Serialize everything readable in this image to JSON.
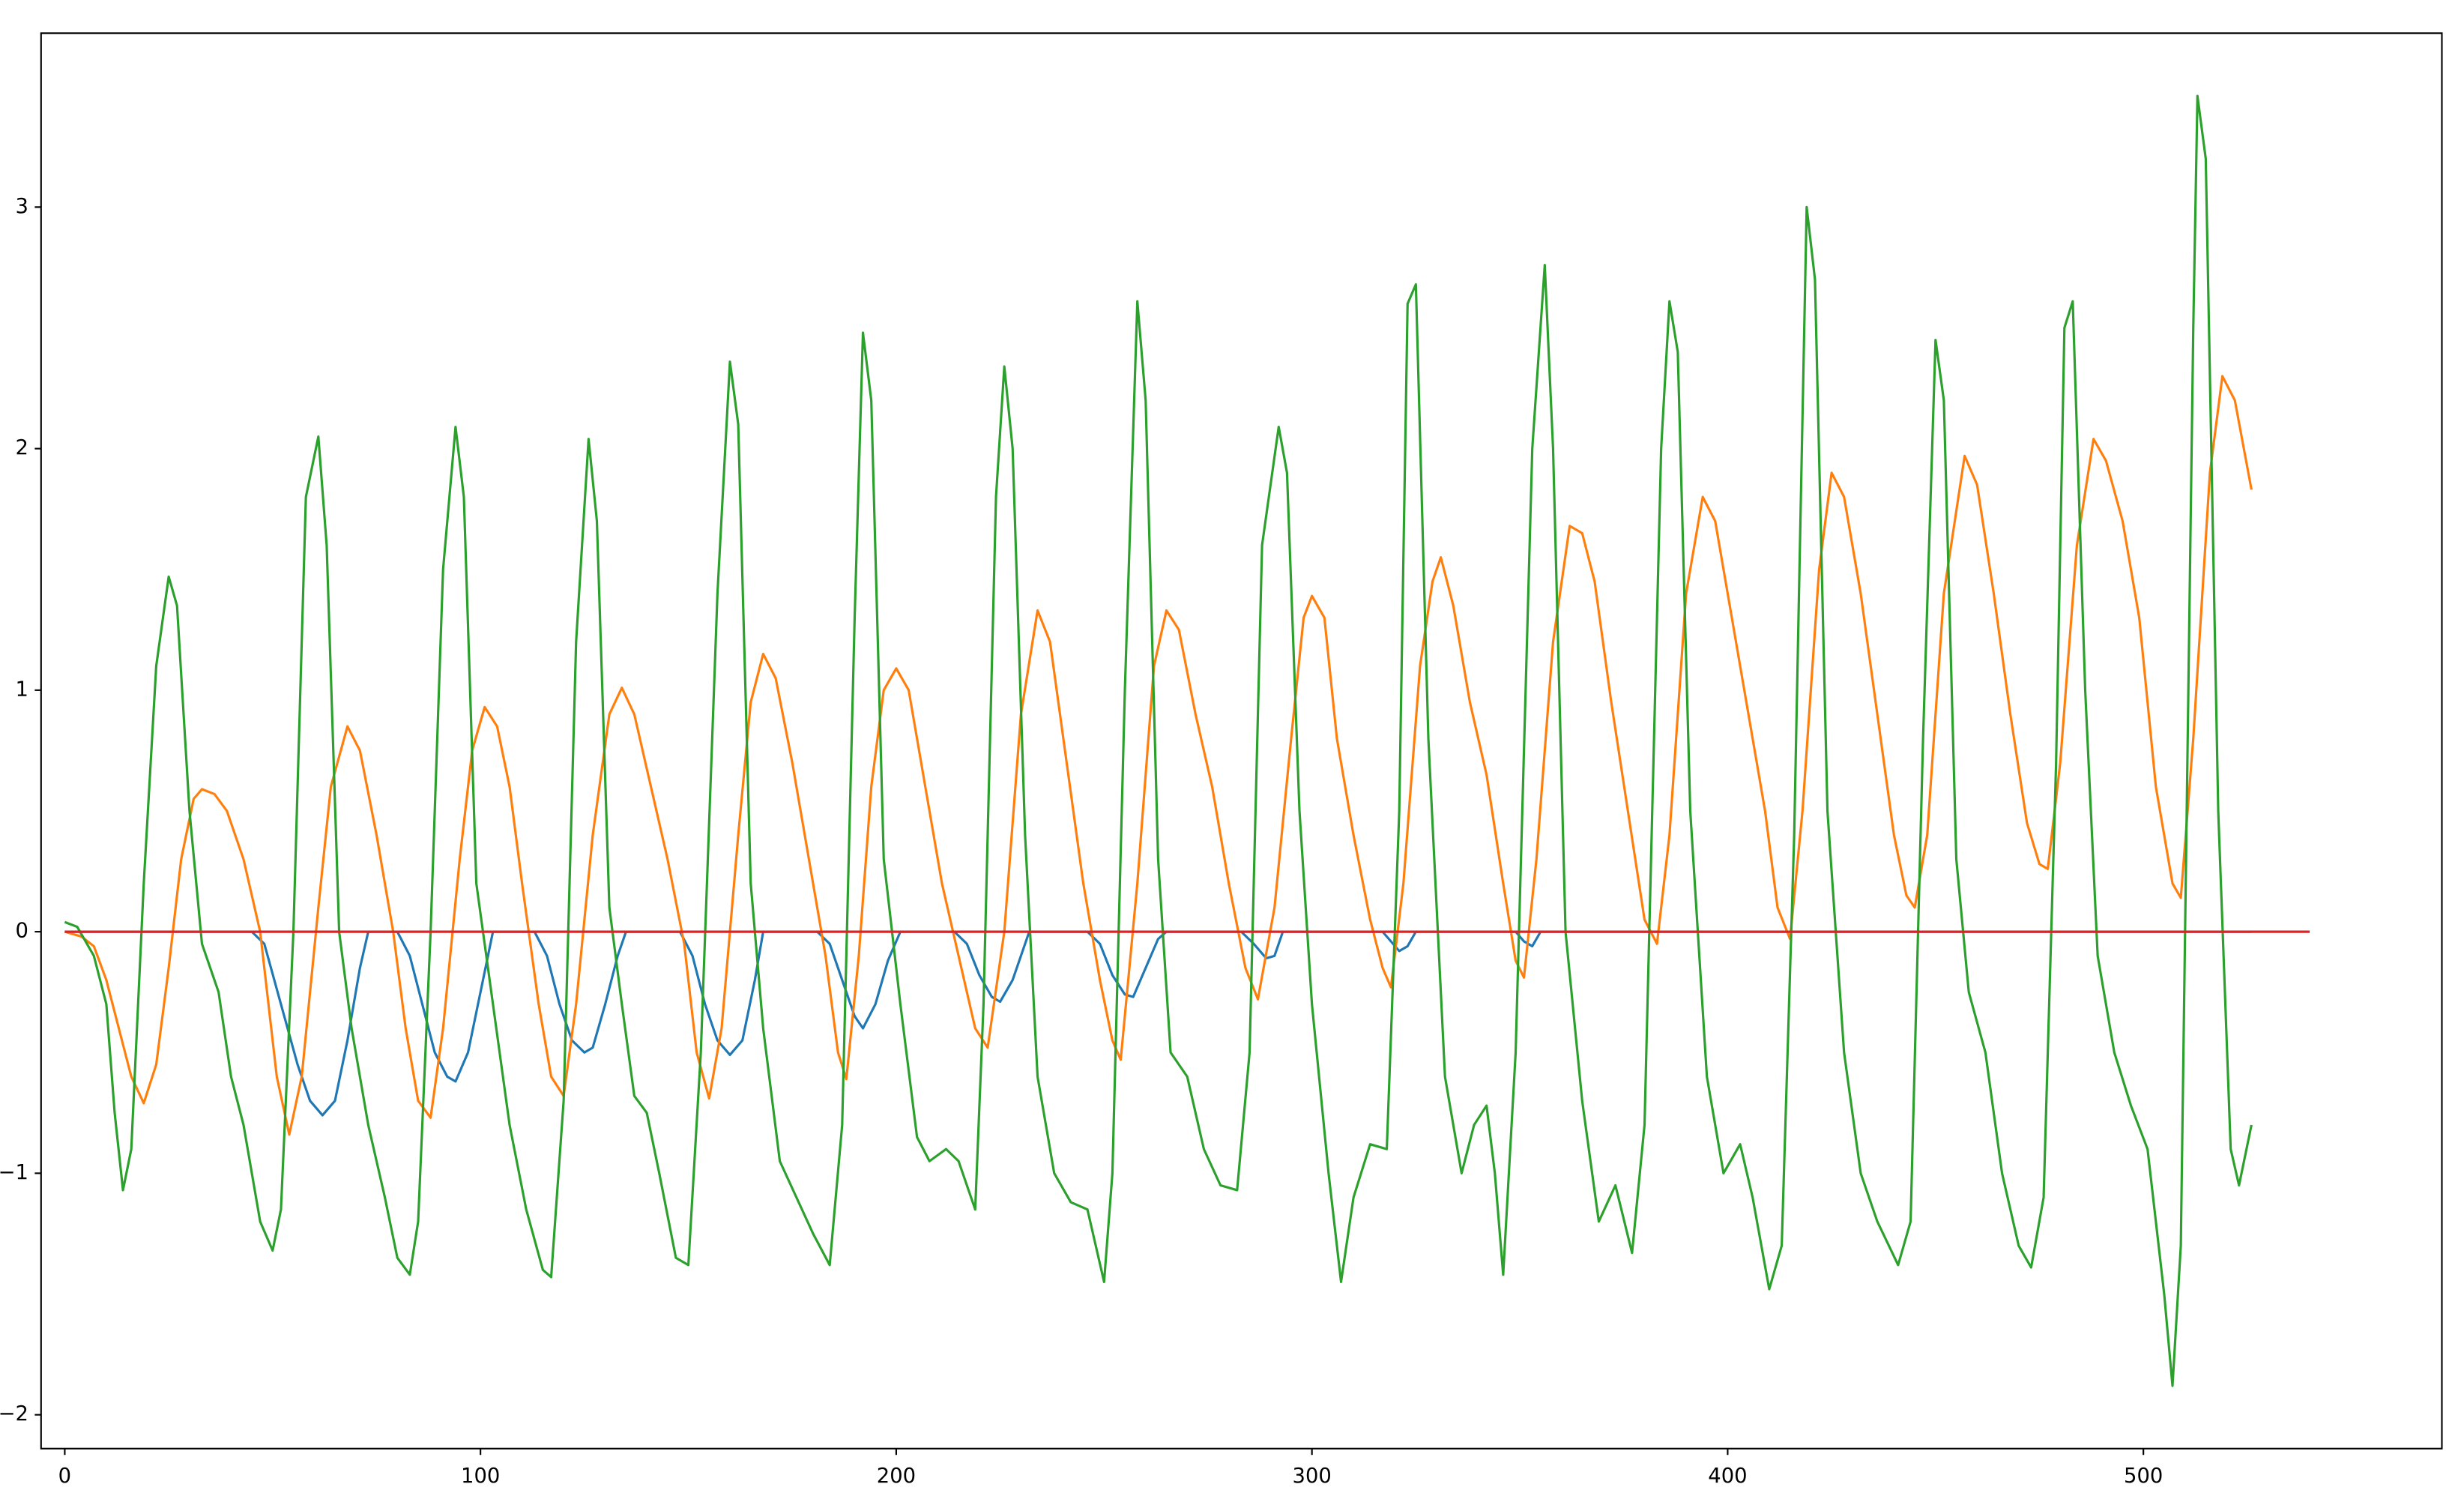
{
  "chart_data": {
    "type": "line",
    "xlim": [
      -5.7,
      571.8
    ],
    "ylim": [
      -2.14,
      3.72
    ],
    "xticks": [
      0,
      100,
      200,
      300,
      400,
      500
    ],
    "yticks": [
      {
        "value": -2,
        "label": "−2"
      },
      {
        "value": -1,
        "label": "−1"
      },
      0,
      1,
      2,
      3
    ],
    "grid": false,
    "series": [
      {
        "color": "#1f77b4",
        "x": [
          0,
          45,
          48,
          52,
          56,
          59,
          62,
          65,
          68,
          71,
          73,
          80,
          83,
          86,
          89,
          92,
          94,
          97,
          100,
          103,
          113,
          116,
          119,
          122,
          125,
          127,
          130,
          133,
          135,
          148,
          151,
          154,
          157,
          160,
          163,
          166,
          168,
          181,
          184,
          187,
          190,
          192,
          195,
          198,
          201,
          214,
          217,
          220,
          223,
          225,
          228,
          231,
          232,
          246,
          249,
          252,
          255,
          257,
          260,
          263,
          265,
          283,
          286,
          289,
          291,
          293,
          317,
          319,
          321,
          323,
          325,
          349,
          351,
          353,
          355,
          526
        ],
        "values": [
          0,
          0,
          -0.05,
          -0.3,
          -0.55,
          -0.7,
          -0.76,
          -0.7,
          -0.45,
          -0.15,
          0,
          0,
          -0.1,
          -0.3,
          -0.5,
          -0.6,
          -0.62,
          -0.5,
          -0.25,
          0,
          0,
          -0.1,
          -0.3,
          -0.45,
          -0.5,
          -0.48,
          -0.3,
          -0.1,
          0,
          0,
          -0.1,
          -0.3,
          -0.45,
          -0.51,
          -0.45,
          -0.2,
          0,
          0,
          -0.05,
          -0.2,
          -0.35,
          -0.4,
          -0.3,
          -0.12,
          0,
          0,
          -0.05,
          -0.18,
          -0.27,
          -0.29,
          -0.2,
          -0.05,
          0,
          0,
          -0.05,
          -0.18,
          -0.26,
          -0.27,
          -0.15,
          -0.03,
          0,
          0,
          -0.05,
          -0.11,
          -0.1,
          0,
          0,
          -0.04,
          -0.08,
          -0.06,
          0,
          0,
          -0.04,
          -0.06,
          0,
          0
        ]
      },
      {
        "color": "#ff7f0e",
        "x": [
          0,
          4,
          7,
          10,
          13,
          16,
          19,
          22,
          25,
          28,
          31,
          33,
          36,
          39,
          43,
          47,
          51,
          54,
          57,
          61,
          64,
          68,
          71,
          75,
          79,
          82,
          85,
          88,
          91,
          95,
          98,
          101,
          104,
          107,
          110,
          114,
          117,
          120,
          123,
          127,
          131,
          134,
          137,
          141,
          145,
          149,
          152,
          155,
          158,
          162,
          165,
          168,
          171,
          175,
          179,
          183,
          186,
          188,
          191,
          194,
          197,
          200,
          203,
          207,
          211,
          215,
          219,
          222,
          226,
          230,
          234,
          237,
          241,
          245,
          249,
          252,
          254,
          258,
          262,
          265,
          268,
          272,
          276,
          280,
          284,
          287,
          291,
          295,
          298,
          300,
          303,
          306,
          310,
          314,
          317,
          319,
          322,
          326,
          329,
          331,
          334,
          338,
          342,
          346,
          349,
          351,
          354,
          358,
          362,
          365,
          368,
          372,
          376,
          380,
          383,
          386,
          390,
          394,
          397,
          401,
          405,
          409,
          412,
          415,
          418,
          422,
          425,
          428,
          432,
          436,
          440,
          443,
          445,
          448,
          452,
          457,
          460,
          464,
          468,
          472,
          475,
          477,
          480,
          484,
          488,
          491,
          495,
          499,
          503,
          507,
          509,
          512,
          516,
          519,
          522,
          526
        ],
        "values": [
          0,
          -0.02,
          -0.06,
          -0.2,
          -0.4,
          -0.6,
          -0.71,
          -0.55,
          -0.15,
          0.3,
          0.55,
          0.59,
          0.57,
          0.5,
          0.3,
          0,
          -0.6,
          -0.84,
          -0.6,
          0.1,
          0.6,
          0.85,
          0.75,
          0.4,
          0,
          -0.4,
          -0.7,
          -0.77,
          -0.4,
          0.3,
          0.75,
          0.93,
          0.85,
          0.6,
          0.2,
          -0.3,
          -0.6,
          -0.68,
          -0.3,
          0.4,
          0.9,
          1.01,
          0.9,
          0.6,
          0.3,
          -0.05,
          -0.5,
          -0.69,
          -0.4,
          0.4,
          0.95,
          1.15,
          1.05,
          0.7,
          0.3,
          -0.1,
          -0.5,
          -0.61,
          -0.1,
          0.6,
          1,
          1.09,
          1,
          0.6,
          0.2,
          -0.1,
          -0.4,
          -0.48,
          0,
          0.9,
          1.33,
          1.2,
          0.7,
          0.2,
          -0.2,
          -0.45,
          -0.53,
          0.2,
          1.1,
          1.33,
          1.25,
          0.9,
          0.6,
          0.2,
          -0.15,
          -0.28,
          0.1,
          0.8,
          1.3,
          1.39,
          1.3,
          0.8,
          0.4,
          0.05,
          -0.15,
          -0.23,
          0.2,
          1.1,
          1.45,
          1.55,
          1.35,
          0.95,
          0.65,
          0.2,
          -0.12,
          -0.19,
          0.3,
          1.2,
          1.68,
          1.65,
          1.45,
          0.95,
          0.5,
          0.05,
          -0.05,
          0.4,
          1.4,
          1.8,
          1.7,
          1.3,
          0.9,
          0.5,
          0.1,
          -0.03,
          0.5,
          1.5,
          1.9,
          1.8,
          1.4,
          0.9,
          0.4,
          0.15,
          0.1,
          0.4,
          1.4,
          1.97,
          1.85,
          1.4,
          0.9,
          0.45,
          0.28,
          0.26,
          0.7,
          1.6,
          2.04,
          1.95,
          1.7,
          1.3,
          0.6,
          0.2,
          0.14,
          0.8,
          1.9,
          2.3,
          2.2,
          1.83
        ]
      },
      {
        "color": "#2ca02c",
        "x": [
          0,
          3,
          7,
          10,
          12,
          14,
          16,
          19,
          22,
          25,
          27,
          30,
          33,
          37,
          40,
          43,
          47,
          50,
          52,
          55,
          58,
          61,
          63,
          66,
          69,
          73,
          77,
          80,
          83,
          85,
          88,
          91,
          94,
          96,
          99,
          103,
          107,
          111,
          115,
          117,
          120,
          123,
          126,
          128,
          131,
          134,
          137,
          140,
          143,
          147,
          150,
          153,
          157,
          160,
          162,
          165,
          168,
          172,
          176,
          180,
          184,
          187,
          190,
          192,
          194,
          197,
          201,
          205,
          208,
          212,
          215,
          219,
          221,
          224,
          226,
          228,
          231,
          234,
          238,
          242,
          246,
          250,
          252,
          255,
          258,
          260,
          263,
          266,
          270,
          274,
          278,
          282,
          285,
          288,
          292,
          294,
          297,
          300,
          304,
          307,
          310,
          314,
          318,
          321,
          323,
          325,
          328,
          332,
          336,
          339,
          342,
          344,
          346,
          349,
          353,
          356,
          358,
          361,
          365,
          369,
          373,
          377,
          380,
          384,
          386,
          388,
          391,
          395,
          399,
          403,
          406,
          410,
          413,
          416,
          419,
          421,
          424,
          428,
          432,
          436,
          441,
          444,
          447,
          450,
          452,
          455,
          458,
          462,
          466,
          470,
          473,
          476,
          479,
          481,
          483,
          486,
          489,
          493,
          497,
          501,
          505,
          507,
          509,
          512,
          513,
          515,
          518,
          521,
          523,
          526
        ],
        "values": [
          0.04,
          0.02,
          -0.1,
          -0.3,
          -0.75,
          -1.07,
          -0.9,
          0.2,
          1.1,
          1.47,
          1.35,
          0.5,
          -0.05,
          -0.25,
          -0.6,
          -0.8,
          -1.2,
          -1.32,
          -1.15,
          0,
          1.8,
          2.05,
          1.6,
          0,
          -0.4,
          -0.8,
          -1.1,
          -1.35,
          -1.42,
          -1.2,
          0,
          1.5,
          2.09,
          1.8,
          0.2,
          -0.3,
          -0.8,
          -1.15,
          -1.4,
          -1.43,
          -0.7,
          1.2,
          2.04,
          1.7,
          0.1,
          -0.3,
          -0.68,
          -0.75,
          -1,
          -1.35,
          -1.38,
          -0.5,
          1.4,
          2.36,
          2.1,
          0.2,
          -0.4,
          -0.95,
          -1.1,
          -1.25,
          -1.38,
          -0.8,
          1.3,
          2.48,
          2.2,
          0.3,
          -0.3,
          -0.85,
          -0.95,
          -0.9,
          -0.95,
          -1.15,
          -0.3,
          1.8,
          2.34,
          2,
          0.4,
          -0.6,
          -1,
          -1.12,
          -1.15,
          -1.45,
          -1,
          1,
          2.61,
          2.2,
          0.3,
          -0.5,
          -0.6,
          -0.9,
          -1.05,
          -1.07,
          -0.5,
          1.6,
          2.09,
          1.9,
          0.5,
          -0.3,
          -1,
          -1.45,
          -1.1,
          -0.88,
          -0.9,
          0.5,
          2.6,
          2.68,
          0.8,
          -0.6,
          -1,
          -0.8,
          -0.72,
          -1,
          -1.42,
          -0.5,
          2,
          2.76,
          2,
          0,
          -0.7,
          -1.2,
          -1.05,
          -1.33,
          -0.8,
          2,
          2.61,
          2.4,
          0.5,
          -0.6,
          -1,
          -0.88,
          -1.1,
          -1.48,
          -1.3,
          0.4,
          3,
          2.7,
          0.5,
          -0.5,
          -1,
          -1.2,
          -1.38,
          -1.2,
          0.8,
          2.45,
          2.2,
          0.3,
          -0.25,
          -0.5,
          -1,
          -1.3,
          -1.39,
          -1.1,
          0.7,
          2.5,
          2.61,
          1,
          -0.1,
          -0.5,
          -0.72,
          -0.9,
          -1.5,
          -1.88,
          -1.3,
          2.5,
          3.46,
          3.2,
          0.5,
          -0.9,
          -1.05,
          -0.8
        ]
      },
      {
        "color": "#d62728",
        "x": [
          0,
          540
        ],
        "values": [
          0,
          0
        ]
      }
    ]
  }
}
